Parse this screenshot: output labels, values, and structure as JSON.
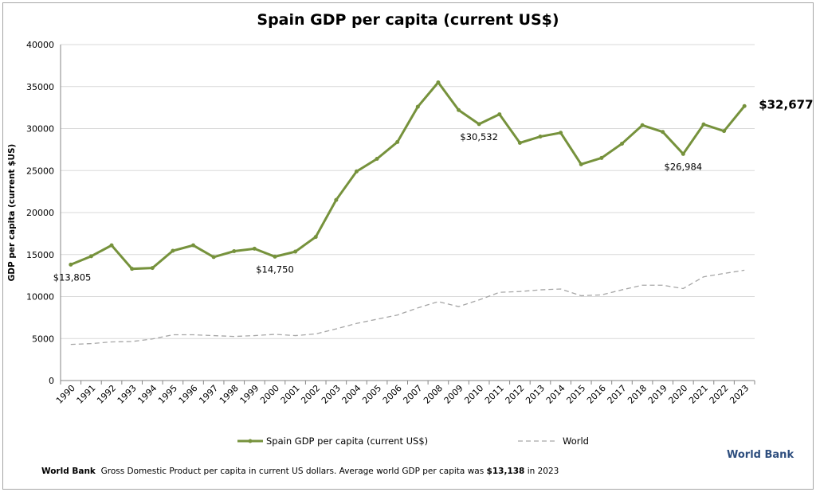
{
  "chart_data": {
    "type": "line",
    "title": "Spain GDP per capita (current US$)",
    "ylabel": "GDP per capita (current $US)",
    "xlabel": "",
    "ylim": [
      0,
      40000
    ],
    "yticks": [
      0,
      5000,
      10000,
      15000,
      20000,
      25000,
      30000,
      35000,
      40000
    ],
    "grid": true,
    "legend": "bottom",
    "categories": [
      "1990",
      "1991",
      "1992",
      "1993",
      "1994",
      "1995",
      "1996",
      "1997",
      "1998",
      "1999",
      "2000",
      "2001",
      "2002",
      "2003",
      "2004",
      "2005",
      "2006",
      "2007",
      "2008",
      "2009",
      "2010",
      "2011",
      "2012",
      "2013",
      "2014",
      "2015",
      "2016",
      "2017",
      "2018",
      "2019",
      "2020",
      "2021",
      "2022",
      "2023"
    ],
    "series": [
      {
        "name": "Spain GDP per capita (current US$)",
        "color": "#76923c",
        "style": "solid-markers",
        "values": [
          13805,
          14800,
          16100,
          13300,
          13400,
          15450,
          16100,
          14700,
          15400,
          15700,
          14750,
          15350,
          17100,
          21500,
          24900,
          26400,
          28400,
          32600,
          35500,
          32200,
          30532,
          31700,
          28300,
          29050,
          29500,
          25750,
          26500,
          28200,
          30400,
          29600,
          26984,
          30500,
          29700,
          32677
        ]
      },
      {
        "name": "World",
        "color": "#a6a6a6",
        "style": "dashed",
        "values": [
          4300,
          4400,
          4600,
          4650,
          4950,
          5450,
          5450,
          5350,
          5250,
          5350,
          5500,
          5350,
          5550,
          6150,
          6800,
          7300,
          7800,
          8650,
          9400,
          8800,
          9600,
          10500,
          10600,
          10800,
          10900,
          10100,
          10200,
          10800,
          11350,
          11350,
          10950,
          12350,
          12750,
          13138
        ]
      }
    ],
    "annotations": [
      {
        "year": "1990",
        "text": "$13,805"
      },
      {
        "year": "2000",
        "text": "$14,750"
      },
      {
        "year": "2010",
        "text": "$30,532"
      },
      {
        "year": "2020",
        "text": "$26,984"
      },
      {
        "year": "2023",
        "text": "$32,677",
        "bold": true
      }
    ]
  },
  "footer": {
    "source": "World Bank",
    "text": "Gross Domestic Product per capita in current US dollars.  Average world GDP per capita was ",
    "highlight": "$13,138",
    "suffix": " in 2023"
  },
  "brand": "World Bank"
}
